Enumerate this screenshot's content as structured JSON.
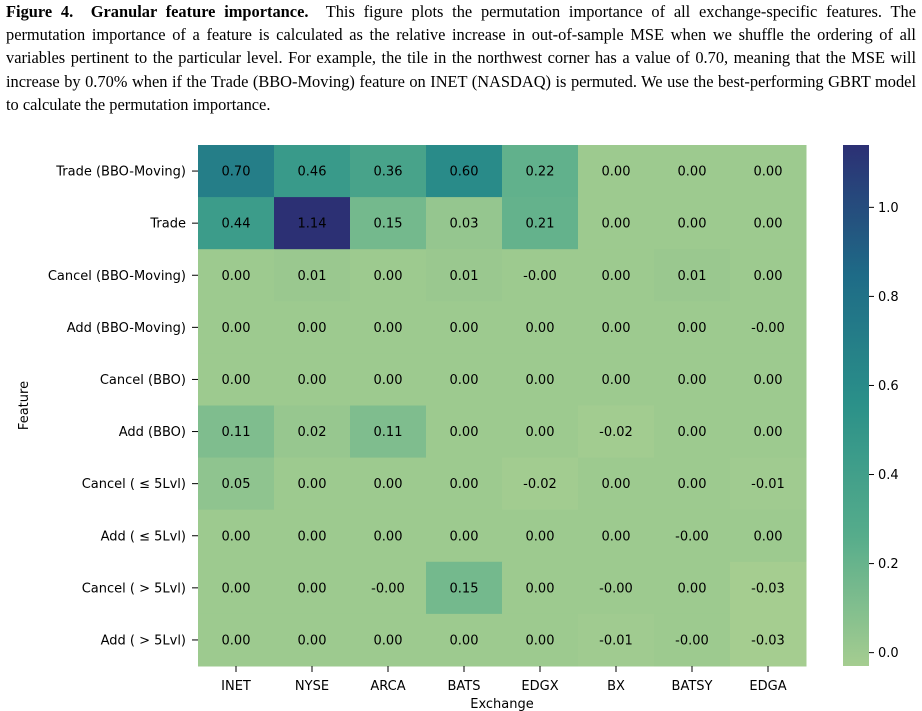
{
  "caption": {
    "label": "Figure 4.",
    "title": "Granular feature importance.",
    "text": "This figure plots the permutation importance of all exchange-specific features. The permutation importance of a feature is calculated as the relative increase in out-of-sample MSE when we shuffle the ordering of all variables pertinent to the particular level. For example, the tile in the northwest corner has a value of 0.70, meaning that the MSE will increase by 0.70% when if the Trade (BBO-Moving) feature on INET (NASDAQ) is permuted. We use the best-performing GBRT model to calculate the permutation importance."
  },
  "chart_data": {
    "type": "heatmap",
    "xlabel": "Exchange",
    "ylabel": "Feature",
    "x": [
      "INET",
      "NYSE",
      "ARCA",
      "BATS",
      "EDGX",
      "BX",
      "BATSY",
      "EDGA"
    ],
    "y": [
      "Trade (BBO-Moving)",
      "Trade",
      "Cancel (BBO-Moving)",
      "Add (BBO-Moving)",
      "Cancel (BBO)",
      "Add (BBO)",
      "Cancel ( ≤ 5Lvl)",
      "Add ( ≤ 5Lvl)",
      "Cancel ( > 5Lvl)",
      "Add ( > 5Lvl)"
    ],
    "values": [
      [
        0.7,
        0.46,
        0.36,
        0.6,
        0.22,
        0.0,
        0.0,
        0.0
      ],
      [
        0.44,
        1.14,
        0.15,
        0.03,
        0.21,
        0.0,
        0.0,
        0.0
      ],
      [
        0.0,
        0.01,
        0.0,
        0.01,
        -0.0,
        0.0,
        0.01,
        0.0
      ],
      [
        0.0,
        0.0,
        0.0,
        0.0,
        0.0,
        0.0,
        0.0,
        -0.0
      ],
      [
        0.0,
        0.0,
        0.0,
        0.0,
        0.0,
        0.0,
        0.0,
        0.0
      ],
      [
        0.11,
        0.02,
        0.11,
        0.0,
        0.0,
        -0.02,
        0.0,
        0.0
      ],
      [
        0.05,
        0.0,
        0.0,
        0.0,
        -0.02,
        0.0,
        0.0,
        -0.01
      ],
      [
        0.0,
        0.0,
        0.0,
        0.0,
        0.0,
        0.0,
        -0.0,
        0.0
      ],
      [
        0.0,
        0.0,
        -0.0,
        0.15,
        0.0,
        -0.0,
        0.0,
        -0.03
      ],
      [
        0.0,
        0.0,
        0.0,
        0.0,
        0.0,
        -0.01,
        -0.0,
        -0.03
      ]
    ],
    "labels": [
      [
        "0.70",
        "0.46",
        "0.36",
        "0.60",
        "0.22",
        "0.00",
        "0.00",
        "0.00"
      ],
      [
        "0.44",
        "1.14",
        "0.15",
        "0.03",
        "0.21",
        "0.00",
        "0.00",
        "0.00"
      ],
      [
        "0.00",
        "0.01",
        "0.00",
        "0.01",
        "-0.00",
        "0.00",
        "0.01",
        "0.00"
      ],
      [
        "0.00",
        "0.00",
        "0.00",
        "0.00",
        "0.00",
        "0.00",
        "0.00",
        "-0.00"
      ],
      [
        "0.00",
        "0.00",
        "0.00",
        "0.00",
        "0.00",
        "0.00",
        "0.00",
        "0.00"
      ],
      [
        "0.11",
        "0.02",
        "0.11",
        "0.00",
        "0.00",
        "-0.02",
        "0.00",
        "0.00"
      ],
      [
        "0.05",
        "0.00",
        "0.00",
        "0.00",
        "-0.02",
        "0.00",
        "0.00",
        "-0.01"
      ],
      [
        "0.00",
        "0.00",
        "0.00",
        "0.00",
        "0.00",
        "0.00",
        "-0.00",
        "0.00"
      ],
      [
        "0.00",
        "0.00",
        "-0.00",
        "0.15",
        "0.00",
        "-0.00",
        "0.00",
        "-0.03"
      ],
      [
        "0.00",
        "0.00",
        "0.00",
        "0.00",
        "0.00",
        "-0.01",
        "-0.00",
        "-0.03"
      ]
    ],
    "colorbar": {
      "range": [
        -0.03,
        1.14
      ],
      "ticks": [
        0.0,
        0.2,
        0.4,
        0.6,
        0.8,
        1.0
      ],
      "tick_labels": [
        "0.0",
        "0.2",
        "0.4",
        "0.6",
        "0.8",
        "1.0"
      ],
      "colormap": "crest"
    }
  }
}
